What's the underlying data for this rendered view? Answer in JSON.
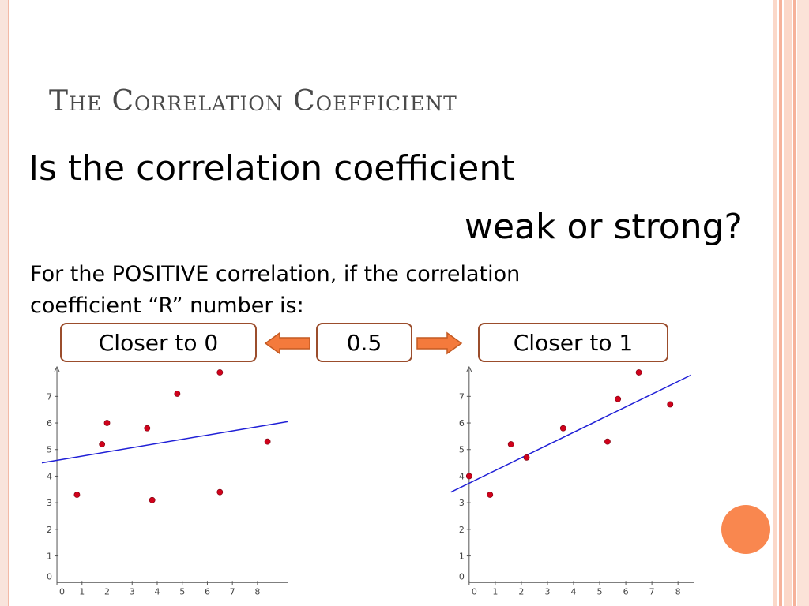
{
  "slide": {
    "title": "The Correlation Coefficient",
    "question_line1": "Is the correlation coefficient",
    "question_line2": "weak or strong?",
    "body_line1": "For the POSITIVE correlation, if the correlation",
    "body_line2": "coefficient “R” number is:"
  },
  "scale": {
    "left_label": "Closer to 0",
    "middle_label": "0.5",
    "right_label": "Closer to 1"
  },
  "colors": {
    "accent": "#f9874f",
    "box_border": "#9b4d2c",
    "arrow_fill": "#f47a3c",
    "point": "#d0021b",
    "line": "#1f1fd6",
    "title": "#4a4a4a"
  },
  "chart_data": [
    {
      "type": "scatter",
      "x_ticks": [
        0,
        1,
        2,
        3,
        4,
        5,
        6,
        7,
        8
      ],
      "y_ticks": [
        0,
        1,
        2,
        3,
        4,
        5,
        6,
        7
      ],
      "xlim": [
        -0.6,
        9.2
      ],
      "ylim": [
        -0.2,
        7.9
      ],
      "points": [
        {
          "x": 0.8,
          "y": 3.3
        },
        {
          "x": 1.8,
          "y": 5.2
        },
        {
          "x": 2.0,
          "y": 6.0
        },
        {
          "x": 3.6,
          "y": 5.8
        },
        {
          "x": 3.8,
          "y": 3.1
        },
        {
          "x": 4.8,
          "y": 7.1
        },
        {
          "x": 6.5,
          "y": 7.9
        },
        {
          "x": 6.5,
          "y": 3.4
        },
        {
          "x": 8.4,
          "y": 5.3
        }
      ],
      "trendline": {
        "x": [
          -0.6,
          9.2
        ],
        "y": [
          4.5,
          6.05
        ]
      }
    },
    {
      "type": "scatter",
      "x_ticks": [
        0,
        1,
        2,
        3,
        4,
        5,
        6,
        7,
        8
      ],
      "y_ticks": [
        0,
        1,
        2,
        3,
        4,
        5,
        6,
        7
      ],
      "xlim": [
        -0.6,
        8.6
      ],
      "ylim": [
        -0.2,
        7.9
      ],
      "points": [
        {
          "x": 0.0,
          "y": 4.0
        },
        {
          "x": 0.8,
          "y": 3.3
        },
        {
          "x": 1.6,
          "y": 5.2
        },
        {
          "x": 2.2,
          "y": 4.7
        },
        {
          "x": 3.6,
          "y": 5.8
        },
        {
          "x": 5.3,
          "y": 5.3
        },
        {
          "x": 5.7,
          "y": 6.9
        },
        {
          "x": 6.5,
          "y": 7.9
        },
        {
          "x": 7.7,
          "y": 6.7
        }
      ],
      "trendline": {
        "x": [
          -0.7,
          8.5
        ],
        "y": [
          3.4,
          7.8
        ]
      }
    }
  ]
}
